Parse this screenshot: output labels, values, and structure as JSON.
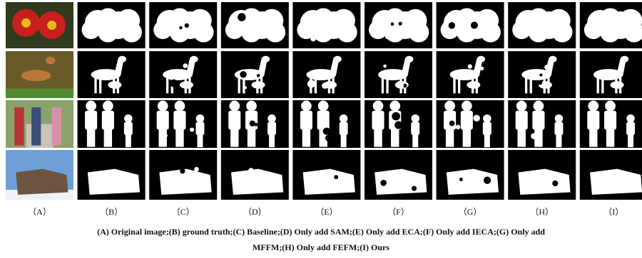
{
  "columns": [
    "（A）",
    "（B）",
    "（C）",
    "（D）",
    "（E）",
    "（F）",
    "（G）",
    "（H）",
    "（I）"
  ],
  "caption": {
    "lines": [
      "(A) Original image;(B) ground truth;(C) Baseline;(D) Only add SAM;(E) Only add ECA;(F) Only add IECA;(G) Only add",
      "MFFM;(H) Only add FEFM;(I) Ours"
    ]
  }
}
